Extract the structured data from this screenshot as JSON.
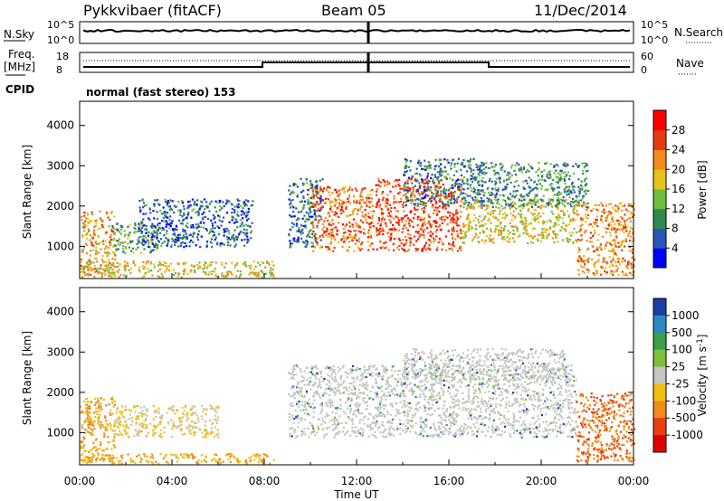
{
  "header": {
    "station": "Pykkvibaer (fitACF)",
    "beam": "Beam 05",
    "date": "11/Dec/2014"
  },
  "panels": {
    "noise": {
      "left_label": "N.Sky",
      "right_label": "N.Search",
      "left_ticks": [
        "10^5",
        "10^0"
      ],
      "right_ticks": [
        "10^5",
        "10^0"
      ]
    },
    "freq": {
      "left_label_1": "Freq.",
      "left_label_2": "[MHz]",
      "right_label": "Nave",
      "left_ticks": [
        "18",
        "8"
      ],
      "right_ticks": [
        "60",
        "0"
      ]
    },
    "cpid": {
      "label": "CPID",
      "text": "normal (fast stereo) 153"
    }
  },
  "chart_data": [
    {
      "type": "heatmap",
      "title": "",
      "ylabel": "Slant Range [km]",
      "xlabel": "",
      "xlim": [
        "00:00",
        "24:00"
      ],
      "ylim": [
        200,
        4600
      ],
      "yticks": [
        1000,
        2000,
        3000,
        4000
      ],
      "colorbar": {
        "label": "Power [dB]",
        "range": [
          0,
          32
        ],
        "ticks": [
          4,
          8,
          12,
          16,
          20,
          24,
          28
        ],
        "colors": [
          "#0000ff",
          "#2a56b8",
          "#2f8a4d",
          "#6fbf3f",
          "#e8c21a",
          "#f28c1c",
          "#e63b10",
          "#ff0000"
        ]
      },
      "regions": [
        {
          "start_h": 0.0,
          "end_h": 1.5,
          "range_lo": 300,
          "range_hi": 1900,
          "value": 20
        },
        {
          "start_h": 1.3,
          "end_h": 3.4,
          "range_lo": 850,
          "range_hi": 1600,
          "value": 12
        },
        {
          "start_h": 2.5,
          "end_h": 7.5,
          "range_lo": 1000,
          "range_hi": 2200,
          "value": 7
        },
        {
          "start_h": 0.0,
          "end_h": 8.5,
          "range_lo": 250,
          "range_hi": 650,
          "value": 18
        },
        {
          "start_h": 9.0,
          "end_h": 10.5,
          "range_lo": 1000,
          "range_hi": 2700,
          "value": 8
        },
        {
          "start_h": 10.0,
          "end_h": 12.7,
          "range_lo": 900,
          "range_hi": 2500,
          "value": 24
        },
        {
          "start_h": 12.8,
          "end_h": 16.5,
          "range_lo": 900,
          "range_hi": 2700,
          "value": 26
        },
        {
          "start_h": 14.0,
          "end_h": 17.5,
          "range_lo": 2000,
          "range_hi": 3200,
          "value": 9
        },
        {
          "start_h": 16.5,
          "end_h": 21.5,
          "range_lo": 1100,
          "range_hi": 2200,
          "value": 18
        },
        {
          "start_h": 17.0,
          "end_h": 22.0,
          "range_lo": 2000,
          "range_hi": 3100,
          "value": 10
        },
        {
          "start_h": 21.5,
          "end_h": 24.0,
          "range_lo": 300,
          "range_hi": 2100,
          "value": 22
        }
      ]
    },
    {
      "type": "heatmap",
      "title": "",
      "ylabel": "Slant Range [km]",
      "xlabel": "Time UT",
      "xticks": [
        "00:00",
        "04:00",
        "08:00",
        "12:00",
        "16:00",
        "20:00",
        "00:00"
      ],
      "xlim": [
        "00:00",
        "24:00"
      ],
      "ylim": [
        200,
        4600
      ],
      "yticks": [
        1000,
        2000,
        3000,
        4000
      ],
      "colorbar": {
        "label": "Velocity [m s^-1]",
        "ticks": [
          1000,
          500,
          100,
          25,
          -25,
          -100,
          -500,
          -1000
        ],
        "colors": [
          "#1b3fa8",
          "#2a8ac4",
          "#3aa04a",
          "#7cc03c",
          "#c6c6c0",
          "#f0c010",
          "#f08c18",
          "#e84010",
          "#e00000"
        ]
      },
      "regions": [
        {
          "start_h": 0.0,
          "end_h": 1.5,
          "range_lo": 300,
          "range_hi": 1900,
          "value": -100
        },
        {
          "start_h": 1.3,
          "end_h": 6.0,
          "range_lo": 900,
          "range_hi": 1700,
          "value": -25
        },
        {
          "start_h": 0.0,
          "end_h": 8.5,
          "range_lo": 250,
          "range_hi": 500,
          "value": -100
        },
        {
          "start_h": 9.0,
          "end_h": 21.5,
          "range_lo": 900,
          "range_hi": 2700,
          "value": 0
        },
        {
          "start_h": 14.0,
          "end_h": 21.0,
          "range_lo": 2300,
          "range_hi": 3100,
          "value": 0
        },
        {
          "start_h": 21.5,
          "end_h": 24.0,
          "range_lo": 300,
          "range_hi": 2000,
          "value": -500
        }
      ]
    }
  ]
}
